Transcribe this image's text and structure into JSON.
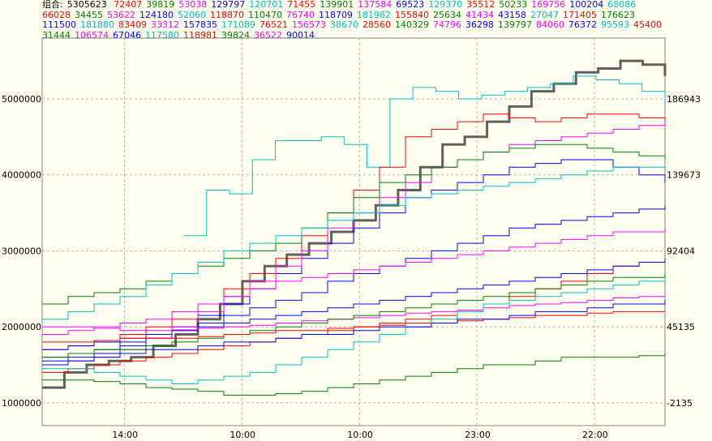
{
  "legend": {
    "label": "组合:",
    "total": "5305623",
    "values": [
      {
        "v": "72407",
        "c": "#ff0000"
      },
      {
        "v": "39819",
        "c": "#008000"
      },
      {
        "v": "53038",
        "c": "#ff00ff"
      },
      {
        "v": "129797",
        "c": "#0000ff"
      },
      {
        "v": "120701",
        "c": "#00c0c0"
      },
      {
        "v": "71455",
        "c": "#ff0000"
      },
      {
        "v": "139901",
        "c": "#008000"
      },
      {
        "v": "137584",
        "c": "#ff00ff"
      },
      {
        "v": "69523",
        "c": "#0000ff"
      },
      {
        "v": "129370",
        "c": "#00c0c0"
      },
      {
        "v": "35512",
        "c": "#ff0000"
      },
      {
        "v": "50233",
        "c": "#008000"
      },
      {
        "v": "169756",
        "c": "#ff00ff"
      },
      {
        "v": "100204",
        "c": "#0000ff"
      },
      {
        "v": "68086",
        "c": "#00c0c0"
      },
      {
        "v": "66028",
        "c": "#ff0000"
      },
      {
        "v": "34455",
        "c": "#008000"
      },
      {
        "v": "53622",
        "c": "#ff00ff"
      },
      {
        "v": "124180",
        "c": "#0000ff"
      },
      {
        "v": "52060",
        "c": "#00c0c0"
      },
      {
        "v": "118870",
        "c": "#ff0000"
      },
      {
        "v": "110470",
        "c": "#008000"
      },
      {
        "v": "76740",
        "c": "#ff00ff"
      },
      {
        "v": "118709",
        "c": "#0000ff"
      },
      {
        "v": "181982",
        "c": "#00c0c0"
      },
      {
        "v": "155840",
        "c": "#ff0000"
      },
      {
        "v": "25634",
        "c": "#008000"
      },
      {
        "v": "41434",
        "c": "#ff00ff"
      },
      {
        "v": "43158",
        "c": "#0000ff"
      },
      {
        "v": "27047",
        "c": "#00c0c0"
      },
      {
        "v": "171405",
        "c": "#ff0000"
      },
      {
        "v": "176623",
        "c": "#008000"
      },
      {
        "v": "111500",
        "c": "#0000ff"
      },
      {
        "v": "181880",
        "c": "#00c0c0"
      },
      {
        "v": "83409",
        "c": "#ff0000"
      },
      {
        "v": "33312",
        "c": "#ff00ff"
      },
      {
        "v": "157835",
        "c": "#0000ff"
      },
      {
        "v": "171089",
        "c": "#00c0c0"
      },
      {
        "v": "76521",
        "c": "#ff0000"
      },
      {
        "v": "156573",
        "c": "#ff00ff"
      },
      {
        "v": "38670",
        "c": "#00c0c0"
      },
      {
        "v": "28560",
        "c": "#ff0000"
      },
      {
        "v": "140329",
        "c": "#008000"
      },
      {
        "v": "74796",
        "c": "#ff00ff"
      },
      {
        "v": "36298",
        "c": "#0000ff"
      },
      {
        "v": "139797",
        "c": "#008000"
      },
      {
        "v": "84060",
        "c": "#ff00ff"
      },
      {
        "v": "76372",
        "c": "#0000ff"
      },
      {
        "v": "95593",
        "c": "#00c0c0"
      },
      {
        "v": "45400",
        "c": "#ff0000"
      },
      {
        "v": "31444",
        "c": "#008000"
      },
      {
        "v": "106574",
        "c": "#ff00ff"
      },
      {
        "v": "67046",
        "c": "#0000ff"
      },
      {
        "v": "117580",
        "c": "#00c0c0"
      },
      {
        "v": "118981",
        "c": "#ff0000"
      },
      {
        "v": "39824",
        "c": "#008000"
      },
      {
        "v": "36522",
        "c": "#ff00ff"
      },
      {
        "v": "90014",
        "c": "#0000ff"
      }
    ]
  },
  "chart_data": {
    "type": "line",
    "x_ticks": [
      "14:00",
      "10:00",
      "10:00",
      "23:00",
      "22:00"
    ],
    "left_axis": {
      "ticks": [
        "1000000",
        "2000000",
        "3000000",
        "4000000",
        "5000000"
      ],
      "ylim": [
        700000,
        5800000
      ]
    },
    "right_axis": {
      "ticks": [
        "-2135",
        "45135",
        "92404",
        "139673",
        "186943"
      ]
    },
    "grid": true,
    "series": [
      {
        "color": "#606060",
        "width": 3,
        "values": [
          1200000,
          1400000,
          1500000,
          1550000,
          1600000,
          1750000,
          1900000,
          2100000,
          2300000,
          2600000,
          2800000,
          2950000,
          3100000,
          3250000,
          3400000,
          3600000,
          3800000,
          4100000,
          4400000,
          4500000,
          4700000,
          4900000,
          5100000,
          5200000,
          5350000,
          5400000,
          5500000,
          5450000,
          5300000
        ]
      },
      {
        "color": "#00c0c0",
        "values": [
          null,
          null,
          null,
          null,
          3200000,
          3800000,
          3750000,
          4200000,
          4450000,
          4450000,
          4500000,
          4400000,
          4100000,
          5000000,
          5150000,
          5100000,
          5000000,
          5050000,
          5100000,
          5150000,
          5200000,
          5300000,
          5250000,
          5200000,
          5100000,
          4950000
        ]
      },
      {
        "color": "#ff0000",
        "values": [
          1700000,
          1750000,
          1800000,
          1900000,
          2000000,
          2100000,
          2300000,
          2500000,
          2700000,
          2900000,
          3200000,
          3500000,
          3800000,
          4100000,
          4500000,
          4600000,
          4700000,
          4800000,
          4750000,
          4700000,
          4750000,
          4800000,
          4800000,
          4750000,
          4700000
        ]
      },
      {
        "color": "#0000ff",
        "values": [
          1600000,
          1650000,
          1700000,
          1800000,
          1900000,
          2000000,
          2150000,
          2300000,
          2500000,
          2700000,
          2900000,
          3100000,
          3300000,
          3500000,
          3700000,
          3800000,
          3900000,
          4000000,
          4100000,
          4150000,
          4200000,
          4200000,
          4100000,
          4000000,
          3900000
        ]
      },
      {
        "color": "#ff00ff",
        "values": [
          1500000,
          1550000,
          1600000,
          1700000,
          1850000,
          2000000,
          2200000,
          2400000,
          2600000,
          2800000,
          3000000,
          3300000,
          3500000,
          3700000,
          3900000,
          4100000,
          4200000,
          4300000,
          4400000,
          4450000,
          4500000,
          4550000,
          4600000,
          4650000,
          4700000
        ]
      },
      {
        "color": "#008000",
        "values": [
          2300000,
          2400000,
          2450000,
          2500000,
          2600000,
          2700000,
          2800000,
          2900000,
          3000000,
          3100000,
          3300000,
          3500000,
          3700000,
          3900000,
          4000000,
          4100000,
          4200000,
          4300000,
          4350000,
          4400000,
          4400000,
          4350000,
          4300000,
          4250000,
          4200000
        ]
      },
      {
        "color": "#0000ff",
        "values": [
          1500000,
          1550000,
          1650000,
          1750000,
          1850000,
          1950000,
          2050000,
          2150000,
          2250000,
          2350000,
          2450000,
          2600000,
          2700000,
          2800000,
          2900000,
          3000000,
          3100000,
          3200000,
          3300000,
          3350000,
          3400000,
          3450000,
          3500000,
          3550000,
          3600000
        ]
      },
      {
        "color": "#ff00ff",
        "values": [
          1900000,
          1950000,
          2000000,
          2050000,
          2100000,
          2200000,
          2300000,
          2400000,
          2500000,
          2600000,
          2650000,
          2700000,
          2750000,
          2800000,
          2850000,
          2900000,
          2950000,
          3000000,
          3050000,
          3100000,
          3150000,
          3200000,
          3250000,
          3250000,
          3300000
        ]
      },
      {
        "color": "#00c0c0",
        "values": [
          2100000,
          2200000,
          2300000,
          2400000,
          2550000,
          2700000,
          2850000,
          3000000,
          3100000,
          3200000,
          3300000,
          3400000,
          3500000,
          3600000,
          3700000,
          3750000,
          3800000,
          3850000,
          3900000,
          3950000,
          4000000,
          4050000,
          4100000,
          4100000,
          4100000
        ]
      },
      {
        "color": "#ff0000",
        "values": [
          1400000,
          1450000,
          1500000,
          1550000,
          1600000,
          1650000,
          1700000,
          1750000,
          1800000,
          1850000,
          1900000,
          1950000,
          2000000,
          2050000,
          2100000,
          2150000,
          2200000,
          2300000,
          2400000,
          2500000,
          2600000,
          2700000,
          2800000,
          2850000,
          2900000
        ]
      },
      {
        "color": "#008000",
        "values": [
          1300000,
          1300000,
          1280000,
          1250000,
          1200000,
          1180000,
          1150000,
          1100000,
          1100000,
          1120000,
          1150000,
          1200000,
          1250000,
          1300000,
          1350000,
          1400000,
          1450000,
          1500000,
          1500000,
          1550000,
          1600000,
          1600000,
          1600000,
          1620000,
          1650000
        ]
      },
      {
        "color": "#0000ff",
        "values": [
          1700000,
          1750000,
          1800000,
          1850000,
          1900000,
          1950000,
          2000000,
          2050000,
          2100000,
          2150000,
          2200000,
          2250000,
          2300000,
          2350000,
          2400000,
          2450000,
          2500000,
          2550000,
          2600000,
          2650000,
          2700000,
          2750000,
          2800000,
          2850000,
          2900000
        ]
      },
      {
        "color": "#ff00ff",
        "values": [
          2000000,
          2000000,
          1980000,
          1950000,
          1950000,
          1960000,
          1980000,
          2000000,
          2020000,
          2050000,
          2080000,
          2100000,
          2120000,
          2150000,
          2180000,
          2200000,
          2220000,
          2250000,
          2280000,
          2300000,
          2320000,
          2350000,
          2380000,
          2400000,
          2400000
        ]
      },
      {
        "color": "#00c0c0",
        "values": [
          1450000,
          1450000,
          1400000,
          1350000,
          1300000,
          1250000,
          1300000,
          1350000,
          1400000,
          1500000,
          1600000,
          1700000,
          1800000,
          1900000,
          2000000,
          2100000,
          2200000,
          2300000,
          2350000,
          2400000,
          2450000,
          2500000,
          2550000,
          2600000,
          2650000
        ]
      },
      {
        "color": "#008000",
        "values": [
          1600000,
          1650000,
          1700000,
          1700000,
          1750000,
          1800000,
          1850000,
          1900000,
          1950000,
          2000000,
          2050000,
          2100000,
          2150000,
          2200000,
          2250000,
          2300000,
          2350000,
          2400000,
          2450000,
          2500000,
          2550000,
          2600000,
          2650000,
          2650000,
          2700000
        ]
      },
      {
        "color": "#ff0000",
        "values": [
          1800000,
          1800000,
          1820000,
          1850000,
          1850000,
          1850000,
          1870000,
          1900000,
          1920000,
          1950000,
          1950000,
          1980000,
          2000000,
          2020000,
          2050000,
          2050000,
          2080000,
          2100000,
          2120000,
          2150000,
          2150000,
          2180000,
          2200000,
          2200000,
          2200000
        ]
      },
      {
        "color": "#0000ff",
        "values": [
          1550000,
          1600000,
          1600000,
          1650000,
          1700000,
          1700000,
          1750000,
          1800000,
          1800000,
          1850000,
          1900000,
          1900000,
          1950000,
          2000000,
          2000000,
          2050000,
          2100000,
          2100000,
          2150000,
          2200000,
          2200000,
          2250000,
          2300000,
          2300000,
          2350000
        ]
      }
    ]
  }
}
